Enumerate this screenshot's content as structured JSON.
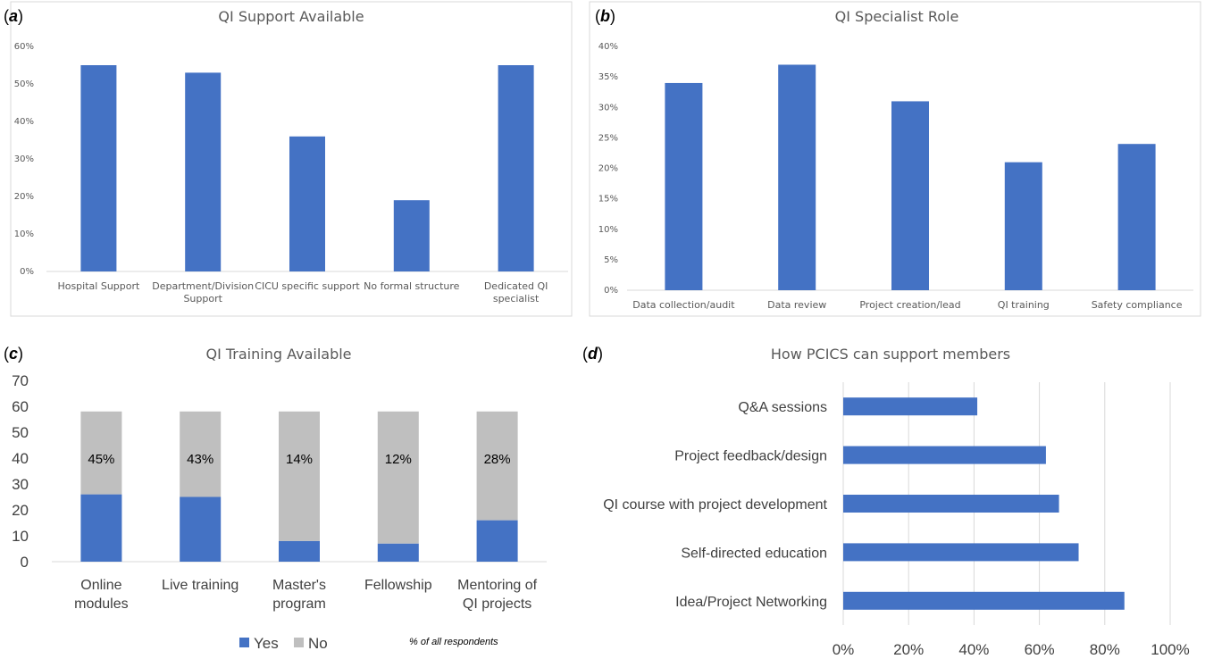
{
  "colors": {
    "blue": "#4472c4",
    "gray": "#bfbfbf",
    "grid": "#d9d9d9",
    "text": "#595959"
  },
  "panels": {
    "a": "a",
    "b": "b",
    "c": "c",
    "d": "d"
  },
  "chart_data": [
    {
      "id": "a",
      "type": "bar",
      "title": "QI Support Available",
      "categories": [
        [
          "Hospital Support"
        ],
        [
          "Department/Division",
          "Support"
        ],
        [
          "CICU specific support"
        ],
        [
          "No formal structure"
        ],
        [
          "Dedicated QI",
          "specialist"
        ]
      ],
      "values": [
        55,
        53,
        36,
        19,
        55
      ],
      "ylim": [
        0,
        60
      ],
      "yticks": [
        0,
        10,
        20,
        30,
        40,
        50,
        60
      ],
      "ytick_labels": [
        "0%",
        "10%",
        "20%",
        "30%",
        "40%",
        "50%",
        "60%"
      ],
      "grid": false
    },
    {
      "id": "b",
      "type": "bar",
      "title": "QI Specialist Role",
      "categories": [
        [
          "Data collection/audit"
        ],
        [
          "Data review"
        ],
        [
          "Project creation/lead"
        ],
        [
          "QI training"
        ],
        [
          "Safety compliance"
        ]
      ],
      "values": [
        34,
        37,
        31,
        21,
        24
      ],
      "ylim": [
        0,
        40
      ],
      "yticks": [
        0,
        5,
        10,
        15,
        20,
        25,
        30,
        35,
        40
      ],
      "ytick_labels": [
        "0%",
        "5%",
        "10%",
        "15%",
        "20%",
        "25%",
        "30%",
        "35%",
        "40%"
      ],
      "grid": false
    },
    {
      "id": "c",
      "type": "bar",
      "stacked": true,
      "title": "QI Training Available",
      "categories": [
        [
          "Online",
          "modules"
        ],
        [
          "Live training"
        ],
        [
          "Master's",
          "program"
        ],
        [
          "Fellowship"
        ],
        [
          "Mentoring of",
          "QI projects"
        ]
      ],
      "series": [
        {
          "name": "Yes",
          "values": [
            26,
            25,
            8,
            7,
            16
          ]
        },
        {
          "name": "No",
          "values": [
            32,
            33,
            50,
            51,
            42
          ]
        }
      ],
      "data_labels": [
        "45%",
        "43%",
        "14%",
        "12%",
        "28%"
      ],
      "ylim": [
        0,
        70
      ],
      "yticks": [
        0,
        10,
        20,
        30,
        40,
        50,
        60,
        70
      ],
      "ytick_labels": [
        "0",
        "10",
        "20",
        "30",
        "40",
        "50",
        "60",
        "70"
      ],
      "legend_position": "bottom",
      "annotation": "% of all respondents",
      "grid": false
    },
    {
      "id": "d",
      "type": "bar",
      "orientation": "horizontal",
      "title": "How PCICS can support members",
      "categories": [
        "Q&A sessions",
        "Project feedback/design",
        "QI course with project development",
        "Self-directed education",
        "Idea/Project Networking"
      ],
      "values": [
        41,
        62,
        66,
        72,
        86
      ],
      "xlim": [
        0,
        100
      ],
      "xticks": [
        0,
        20,
        40,
        60,
        80,
        100
      ],
      "xtick_labels": [
        "0%",
        "20%",
        "40%",
        "60%",
        "80%",
        "100%"
      ],
      "grid": true
    }
  ]
}
